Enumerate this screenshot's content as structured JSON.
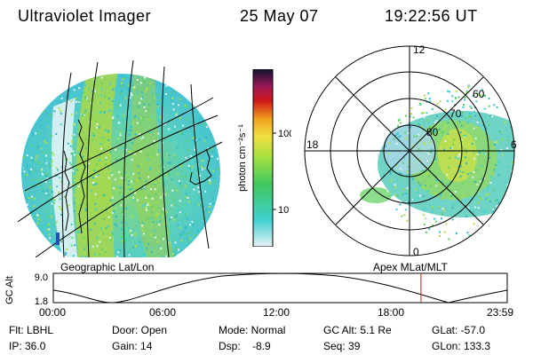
{
  "header": {
    "title": "Ultraviolet Imager",
    "date": "25 May 07",
    "time": "19:22:56 UT"
  },
  "colors": {
    "low": "#e6f2f7",
    "mid_cyan": "#40d0d0",
    "green": "#60d060",
    "yellow": "#e6e640",
    "orange": "#f0a020",
    "red": "#d01818",
    "top": "#101030"
  },
  "colorbar": {
    "unit_label": "photon cm⁻²s⁻¹",
    "ticks": [
      "100",
      "10"
    ]
  },
  "left_panel": {
    "label": "Geographic Lat/Lon"
  },
  "right_panel": {
    "label": "Apex MLat/MLT",
    "mlt_labels": {
      "top": "12",
      "left": "18",
      "right": "6",
      "bottom": "0"
    },
    "lat_labels": [
      "80",
      "70",
      "60"
    ]
  },
  "timeline": {
    "axis_label": "GC Alt",
    "y_ticks": [
      "9.0",
      "1.8"
    ],
    "x_ticks": [
      "00:00",
      "06:00",
      "12:00",
      "18:00",
      "23:59"
    ],
    "current_time_fraction": 0.81
  },
  "status": {
    "filter": "Flt: LBHL",
    "ip": "IP: 36.0",
    "door": "Door: Open",
    "gain": "Gain: 14",
    "mode": "Mode: Normal",
    "dsp": "Dsp:    -8.9",
    "gc_alt": "GC Alt: 5.1 Re",
    "seq": "Seq: 39",
    "glat": "GLat: -57.0",
    "glon": "GLon: 133.3"
  }
}
